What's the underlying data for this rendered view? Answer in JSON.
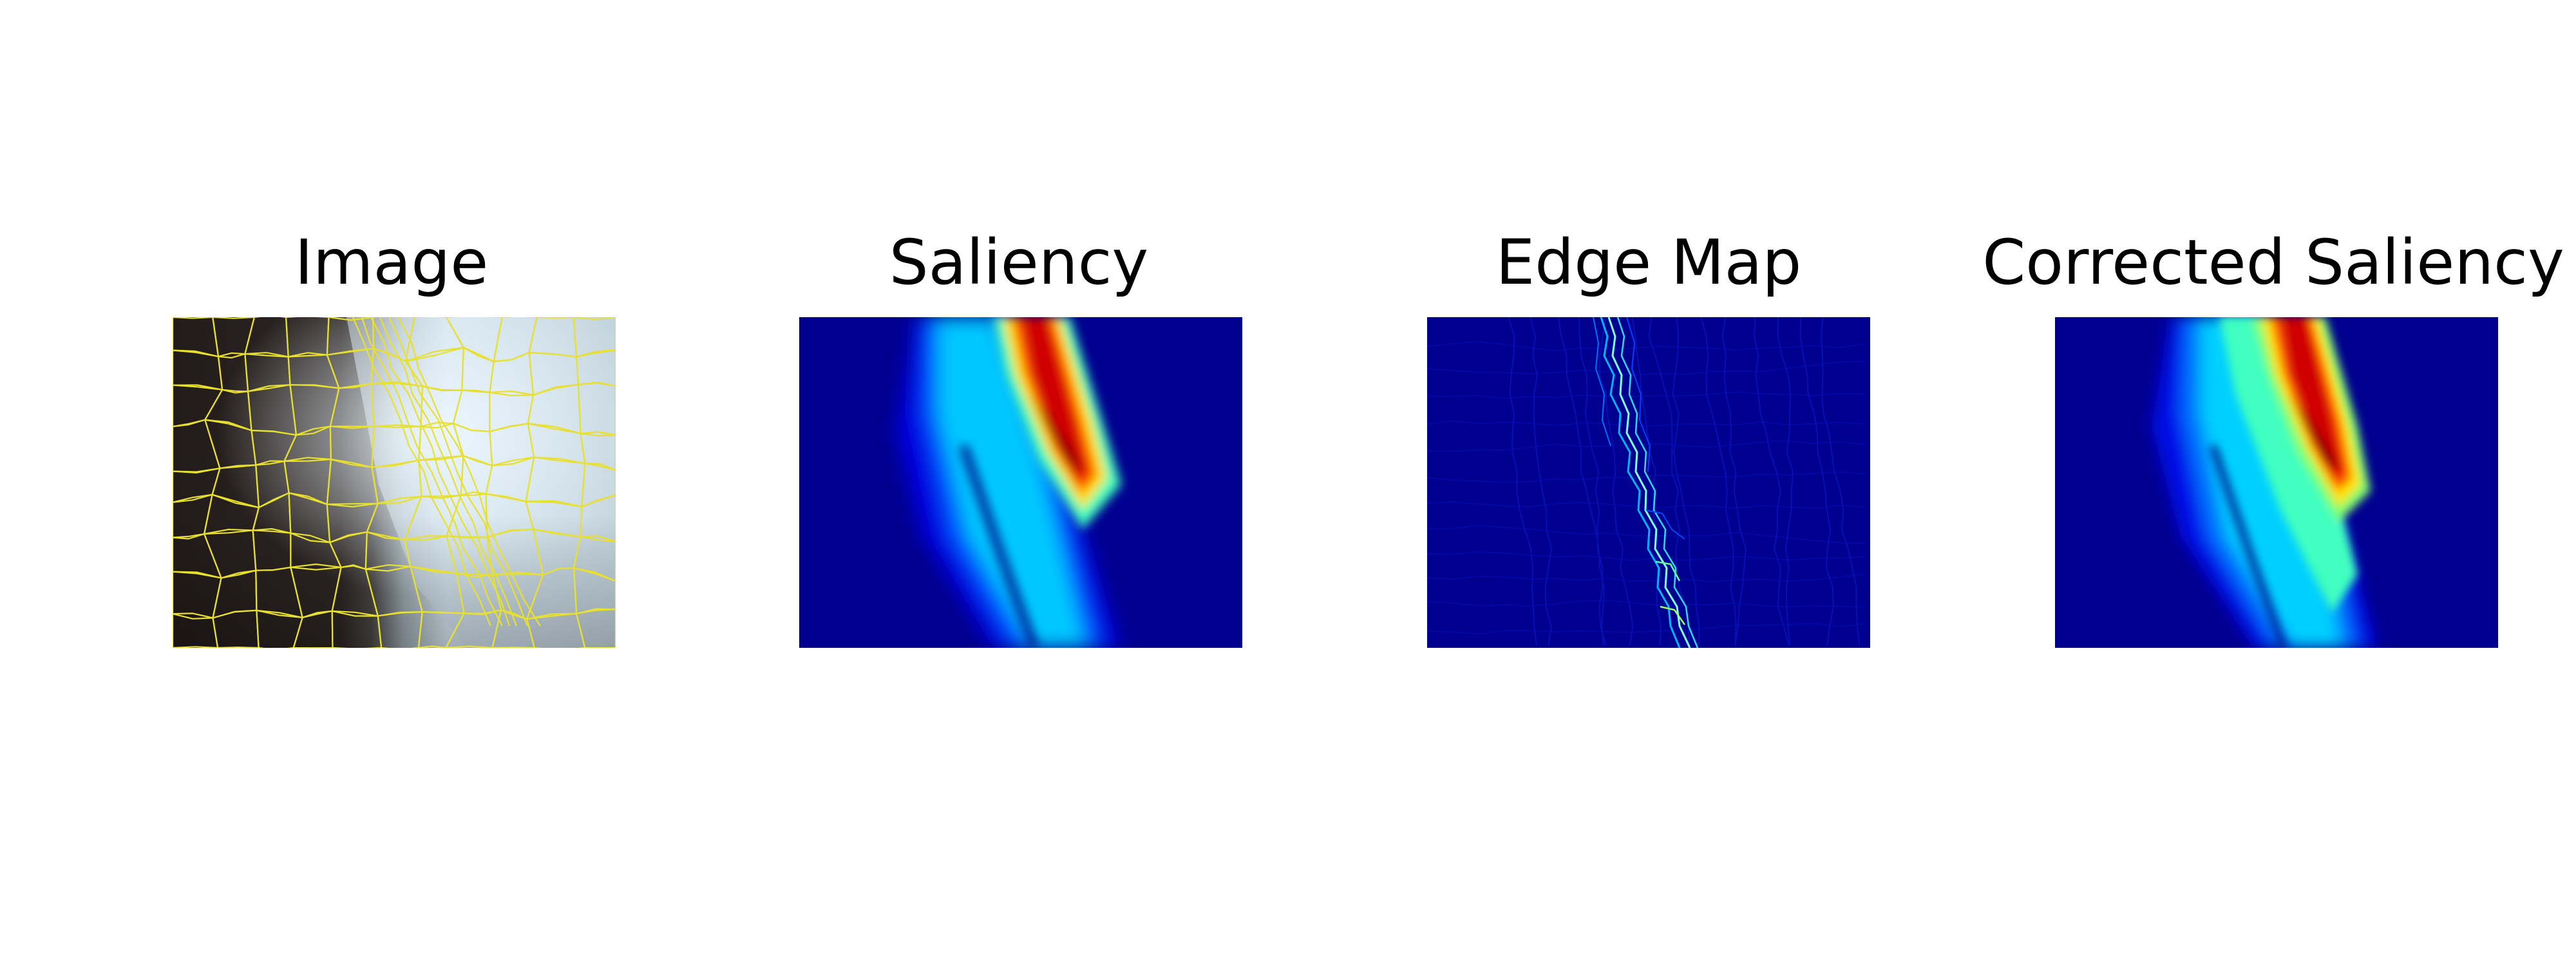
{
  "figure": {
    "panels": [
      {
        "title": "Image",
        "content": "grayscale photograph with yellow superpixel boundaries"
      },
      {
        "title": "Saliency",
        "content": "jet colormap saliency heatmap"
      },
      {
        "title": "Edge Map",
        "content": "jet colormap edge map"
      },
      {
        "title": "Corrected Saliency",
        "content": "jet colormap corrected saliency heatmap"
      }
    ],
    "colors": {
      "superpixel_boundary": "#e8e030",
      "jet_low": "#00008f",
      "jet_mid": "#00ffff",
      "jet_high": "#8f0000",
      "image_dark": "#231c1b",
      "image_light": "#dfeef7"
    }
  }
}
